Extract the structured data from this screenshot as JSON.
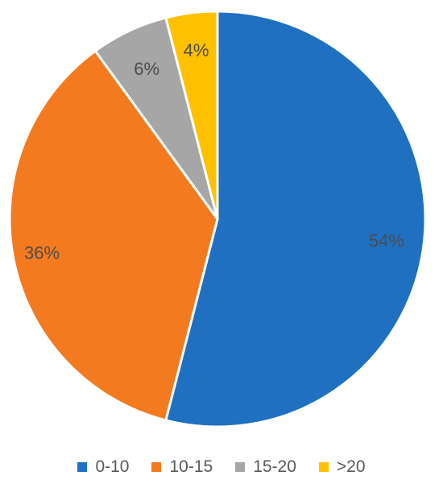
{
  "chart_data": {
    "type": "pie",
    "categories": [
      "0-10",
      "10-15",
      "15-20",
      ">20"
    ],
    "values": [
      54,
      36,
      6,
      4
    ],
    "labels": [
      "54%",
      "36%",
      "6%",
      "4%"
    ],
    "colors": [
      "#1f70c1",
      "#f47a1f",
      "#a6a6a6",
      "#ffc000"
    ],
    "legend_position": "bottom",
    "start_angle": "12 o'clock",
    "direction": "clockwise"
  }
}
